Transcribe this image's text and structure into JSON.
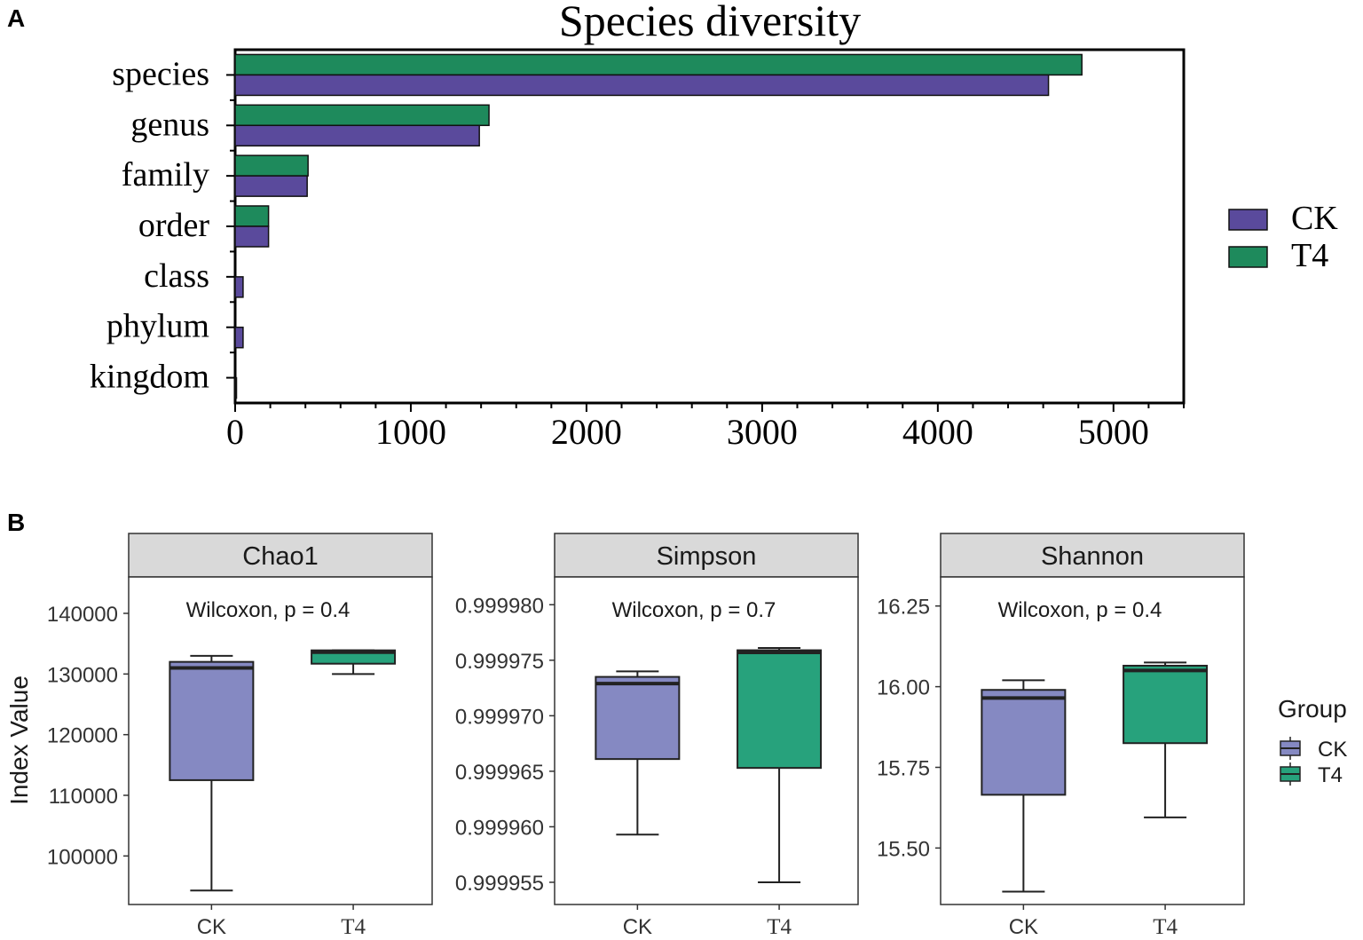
{
  "colors": {
    "ck_a": "#5a4a9c",
    "t4_a": "#1e8a5c",
    "ck_b": "#8589c2",
    "t4_b": "#27a27c",
    "strip": "#d9d9d9"
  },
  "panel_labels": [
    "A",
    "B"
  ],
  "chart_data": [
    {
      "id": "A",
      "type": "bar",
      "orientation": "horizontal",
      "title": "Species diversity",
      "categories": [
        "species",
        "genus",
        "family",
        "order",
        "class",
        "phylum",
        "kingdom"
      ],
      "series": [
        {
          "name": "T4",
          "values": [
            4820,
            1445,
            415,
            190,
            0,
            0,
            0
          ]
        },
        {
          "name": "CK",
          "values": [
            4630,
            1390,
            410,
            190,
            45,
            45,
            2
          ]
        }
      ],
      "xlim": [
        0,
        5400
      ],
      "xticks": [
        "0",
        "1000",
        "2000",
        "3000",
        "4000",
        "5000"
      ],
      "xtick_values": [
        0,
        1000,
        2000,
        3000,
        4000,
        5000
      ],
      "legend": [
        "CK",
        "T4"
      ],
      "legend_position": "right"
    },
    {
      "id": "B",
      "type": "box",
      "ylabel": "Index Value",
      "legend_title": "Group",
      "legend": [
        "CK",
        "T4"
      ],
      "legend_position": "right",
      "facets": [
        {
          "title": "Chao1",
          "annotation": "Wilcoxon, p = 0.4",
          "ylim": [
            92000,
            146000
          ],
          "yticks": [
            "100000",
            "110000",
            "120000",
            "130000",
            "140000"
          ],
          "ytick_values": [
            100000,
            110000,
            120000,
            130000,
            140000
          ],
          "groups": [
            {
              "name": "CK",
              "min": 94300,
              "q1": 112500,
              "median": 131000,
              "q3": 132000,
              "max": 133000
            },
            {
              "name": "T4",
              "min": 130000,
              "q1": 131700,
              "median": 133600,
              "q3": 133900,
              "max": 133900
            }
          ]
        },
        {
          "title": "Simpson",
          "annotation": "Wilcoxon, p = 0.7",
          "ylim": [
            0.999953,
            0.9999825
          ],
          "yticks": [
            "0.999955",
            "0.999960",
            "0.999965",
            "0.999970",
            "0.999975",
            "0.999980"
          ],
          "ytick_values": [
            0.999955,
            0.99996,
            0.999965,
            0.99997,
            0.999975,
            0.99998
          ],
          "groups": [
            {
              "name": "CK",
              "min": 0.9999593,
              "q1": 0.9999661,
              "median": 0.9999729,
              "q3": 0.9999735,
              "max": 0.999974
            },
            {
              "name": "T4",
              "min": 0.999955,
              "q1": 0.9999653,
              "median": 0.9999757,
              "q3": 0.9999759,
              "max": 0.9999761
            }
          ]
        },
        {
          "title": "Shannon",
          "annotation": "Wilcoxon, p = 0.4",
          "ylim": [
            15.325,
            16.34
          ],
          "yticks": [
            "15.50",
            "15.75",
            "16.00",
            "16.25"
          ],
          "ytick_values": [
            15.5,
            15.75,
            16.0,
            16.25
          ],
          "groups": [
            {
              "name": "CK",
              "min": 15.365,
              "q1": 15.665,
              "median": 15.965,
              "q3": 15.99,
              "max": 16.02
            },
            {
              "name": "T4",
              "min": 15.595,
              "q1": 15.825,
              "median": 16.05,
              "q3": 16.065,
              "max": 16.075
            }
          ]
        }
      ]
    }
  ]
}
